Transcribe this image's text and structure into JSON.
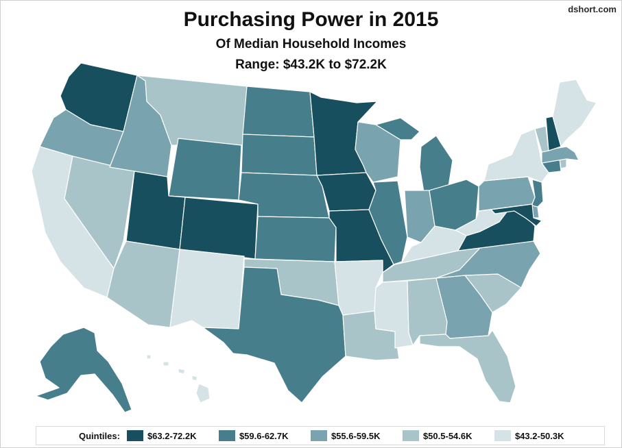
{
  "credit": "dshort.com",
  "title": "Purchasing Power in 2015",
  "subtitle": "Of Median Household Incomes",
  "range_text": "Range: $43.2K to $72.2K",
  "legend": {
    "title": "Quintiles:",
    "classes": [
      {
        "label": "$63.2-72.2K",
        "color": "#174f5f"
      },
      {
        "label": "$59.6-62.7K",
        "color": "#467e8c"
      },
      {
        "label": "$55.6-59.5K",
        "color": "#79a3ae"
      },
      {
        "label": "$50.5-54.6K",
        "color": "#a8c4c9"
      },
      {
        "label": "$43.2-50.3K",
        "color": "#d5e3e6"
      }
    ]
  },
  "states": {
    "WA": 0,
    "OR": 2,
    "CA": 4,
    "NV": 3,
    "ID": 2,
    "MT": 3,
    "WY": 1,
    "UT": 0,
    "AZ": 3,
    "CO": 0,
    "NM": 4,
    "ND": 1,
    "SD": 1,
    "NE": 1,
    "KS": 1,
    "OK": 3,
    "TX": 1,
    "MN": 0,
    "IA": 0,
    "MO": 0,
    "AR": 4,
    "LA": 3,
    "WI": 2,
    "IL": 1,
    "MI": 1,
    "IN": 2,
    "OH": 1,
    "KY": 4,
    "TN": 3,
    "MS": 4,
    "AL": 3,
    "GA": 2,
    "FL": 3,
    "SC": 3,
    "NC": 2,
    "VA": 0,
    "WV": 4,
    "PA": 2,
    "NY": 4,
    "VT": 3,
    "NH": 0,
    "ME": 4,
    "MA": 2,
    "CT": 1,
    "RI": 3,
    "NJ": 1,
    "DE": 2,
    "MD": 0,
    "AK": 1,
    "HI": 4
  }
}
